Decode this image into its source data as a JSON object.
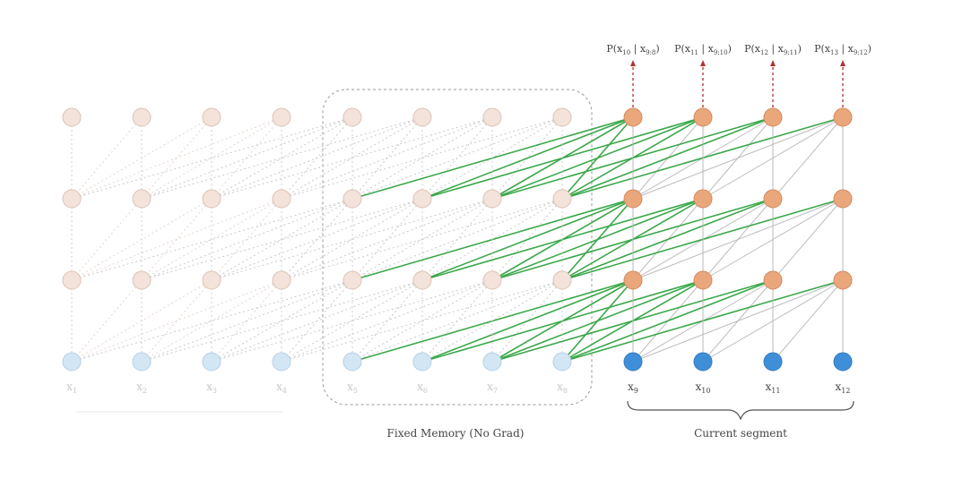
{
  "token_labels": [
    "x1",
    "x2",
    "x3",
    "x4",
    "x5",
    "x6",
    "x7",
    "x8",
    "x9",
    "x10",
    "x11",
    "x12"
  ],
  "token_subs": [
    "1",
    "2",
    "3",
    "4",
    "5",
    "6",
    "7",
    "8",
    "9",
    "10",
    "11",
    "12"
  ],
  "prob_labels": [
    {
      "main": "P(x",
      "sub": "10",
      "cond": " | x",
      "csub": "9:8",
      "end": ")"
    },
    {
      "main": "P(x",
      "sub": "11",
      "cond": " | x",
      "csub": "9:10",
      "end": ")"
    },
    {
      "main": "P(x",
      "sub": "12",
      "cond": " | x",
      "csub": "9:11",
      "end": ")"
    },
    {
      "main": "P(x",
      "sub": "13",
      "cond": " | x",
      "csub": "9:12",
      "end": ")"
    }
  ],
  "memory_label": "Fixed Memory (No Grad)",
  "current_label": "Current segment",
  "colors": {
    "node_old": "#f3e3da",
    "node_old_stroke": "#dcc3b6",
    "node_cur": "#eaa77c",
    "node_cur_stroke": "#d38a5d",
    "input_old": "#d3e6f4",
    "input_old_stroke": "#b6d0e4",
    "input_cur": "#3e8fd8",
    "input_cur_stroke": "#2f7cc3",
    "green": "#3aa84a",
    "arrow": "#b03030"
  }
}
